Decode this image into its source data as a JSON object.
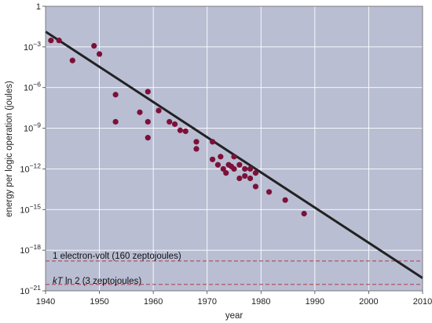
{
  "chart_data": {
    "type": "scatter",
    "title": "",
    "xlabel": "year",
    "ylabel": "energy per logic operation (joules)",
    "xlim": [
      1940,
      2010
    ],
    "ylim_log10": [
      -21,
      0
    ],
    "y_scale": "log10",
    "x_ticks": [
      1940,
      1950,
      1960,
      1970,
      1980,
      1990,
      2000,
      2010
    ],
    "y_ticks": [
      {
        "exp": 0,
        "label": "1"
      },
      {
        "exp": -3,
        "label": "10",
        "sup": "−3"
      },
      {
        "exp": -6,
        "label": "10",
        "sup": "−6"
      },
      {
        "exp": -9,
        "label": "10",
        "sup": "−9"
      },
      {
        "exp": -12,
        "label": "10",
        "sup": "−12"
      },
      {
        "exp": -15,
        "label": "10",
        "sup": "−15"
      },
      {
        "exp": -18,
        "label": "10",
        "sup": "−18"
      },
      {
        "exp": -21,
        "label": "10",
        "sup": "−21"
      }
    ],
    "grid": true,
    "series": [
      {
        "points": [
          {
            "x": 1941,
            "y": 0.003
          },
          {
            "x": 1942.5,
            "y": 0.003
          },
          {
            "x": 1945,
            "y": 0.0001
          },
          {
            "x": 1949,
            "y": 0.0012
          },
          {
            "x": 1950,
            "y": 0.0003
          },
          {
            "x": 1953,
            "y": 3e-07
          },
          {
            "x": 1953,
            "y": 3e-09
          },
          {
            "x": 1957.5,
            "y": 1.5e-08
          },
          {
            "x": 1959,
            "y": 5e-07
          },
          {
            "x": 1959,
            "y": 3e-09
          },
          {
            "x": 1959,
            "y": 2e-10
          },
          {
            "x": 1961,
            "y": 2e-08
          },
          {
            "x": 1963,
            "y": 3e-09
          },
          {
            "x": 1964,
            "y": 2e-09
          },
          {
            "x": 1965,
            "y": 7e-10
          },
          {
            "x": 1966,
            "y": 6e-10
          },
          {
            "x": 1968,
            "y": 1e-10
          },
          {
            "x": 1968,
            "y": 3e-11
          },
          {
            "x": 1971,
            "y": 1e-10
          },
          {
            "x": 1971,
            "y": 5e-12
          },
          {
            "x": 1972,
            "y": 2e-12
          },
          {
            "x": 1972.5,
            "y": 8e-12
          },
          {
            "x": 1973,
            "y": 1e-12
          },
          {
            "x": 1973.5,
            "y": 5e-13
          },
          {
            "x": 1974,
            "y": 2e-12
          },
          {
            "x": 1974.5,
            "y": 1.5e-12
          },
          {
            "x": 1975,
            "y": 8e-12
          },
          {
            "x": 1975,
            "y": 1e-12
          },
          {
            "x": 1976,
            "y": 2e-12
          },
          {
            "x": 1976,
            "y": 2e-13
          },
          {
            "x": 1977,
            "y": 1e-12
          },
          {
            "x": 1977,
            "y": 3e-13
          },
          {
            "x": 1978,
            "y": 2e-13
          },
          {
            "x": 1978,
            "y": 1e-12
          },
          {
            "x": 1979,
            "y": 5e-13
          },
          {
            "x": 1979,
            "y": 5e-14
          },
          {
            "x": 1981.5,
            "y": 2e-14
          },
          {
            "x": 1984.5,
            "y": 5e-15
          },
          {
            "x": 1988,
            "y": 5e-16
          }
        ],
        "color": "#7d1038"
      }
    ],
    "trend_line": {
      "x": [
        1940,
        2010
      ],
      "y": [
        0.0135,
        8.9e-21
      ],
      "color": "#222222"
    },
    "reference_lines": [
      {
        "name": "1 electron-volt (160 zeptojoules)",
        "y": 1.6e-19,
        "color": "#b05560",
        "style": "dashed"
      },
      {
        "name": "kT ln 2 (3 zeptojoules)",
        "y": 3e-21,
        "color": "#b05560",
        "style": "dashed",
        "italic_prefix": "kT"
      }
    ],
    "colors": {
      "plot_background": "#b9bed3",
      "grid": "#ffffff",
      "marker": "#7d1038",
      "trend": "#222222",
      "reference": "#b05560"
    }
  }
}
